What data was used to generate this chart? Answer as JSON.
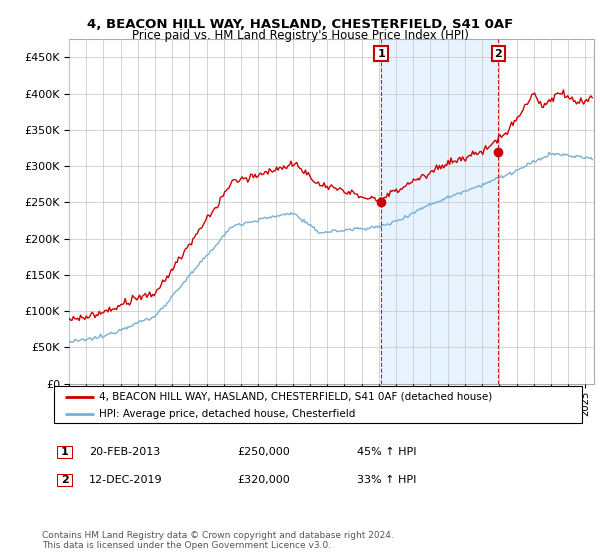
{
  "title": "4, BEACON HILL WAY, HASLAND, CHESTERFIELD, S41 0AF",
  "subtitle": "Price paid vs. HM Land Registry's House Price Index (HPI)",
  "hpi_label": "HPI: Average price, detached house, Chesterfield",
  "price_label": "4, BEACON HILL WAY, HASLAND, CHESTERFIELD, S41 0AF (detached house)",
  "annotation1_date": "20-FEB-2013",
  "annotation1_price": "£250,000",
  "annotation1_hpi": "45% ↑ HPI",
  "annotation1_year": 2013.13,
  "annotation1_value": 250000,
  "annotation2_date": "12-DEC-2019",
  "annotation2_price": "£320,000",
  "annotation2_hpi": "33% ↑ HPI",
  "annotation2_year": 2019.95,
  "annotation2_value": 320000,
  "ylim": [
    0,
    475000
  ],
  "xlim_start": 1995.0,
  "xlim_end": 2025.5,
  "price_color": "#cc0000",
  "hpi_color": "#7ab0d4",
  "hpi_fill_color": "#ddeeff",
  "background_color": "#ffffff",
  "grid_color": "#cccccc",
  "footnote": "Contains HM Land Registry data © Crown copyright and database right 2024.\nThis data is licensed under the Open Government Licence v3.0."
}
